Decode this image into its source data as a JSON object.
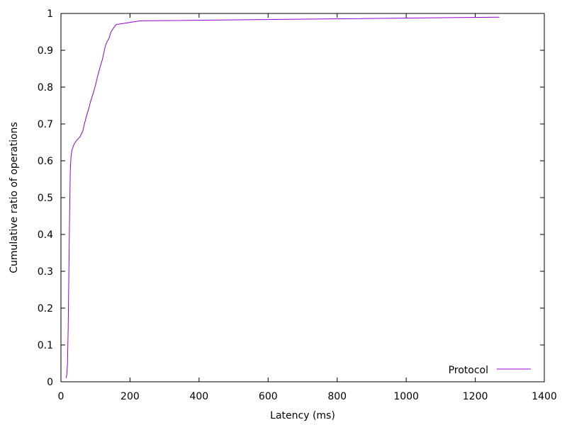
{
  "chart_data": {
    "type": "line",
    "xlabel": "Latency (ms)",
    "ylabel": "Cumulative ratio of operations",
    "xlim": [
      0,
      1400
    ],
    "ylim": [
      0,
      1
    ],
    "x_ticks": [
      "0",
      "200",
      "400",
      "600",
      "800",
      "1000",
      "1200",
      "1400"
    ],
    "y_ticks": [
      "0",
      "0.1",
      "0.2",
      "0.3",
      "0.4",
      "0.5",
      "0.6",
      "0.7",
      "0.8",
      "0.9",
      "1"
    ],
    "grid": false,
    "legend_position": "bottom-right",
    "series": [
      {
        "name": "Protocol",
        "color": "#9400d3",
        "points": [
          [
            15,
            0.01
          ],
          [
            17,
            0.02
          ],
          [
            19,
            0.05
          ],
          [
            21,
            0.15
          ],
          [
            23,
            0.3
          ],
          [
            25,
            0.45
          ],
          [
            27,
            0.57
          ],
          [
            29,
            0.61
          ],
          [
            32,
            0.63
          ],
          [
            38,
            0.645
          ],
          [
            45,
            0.655
          ],
          [
            55,
            0.665
          ],
          [
            63,
            0.68
          ],
          [
            68,
            0.7
          ],
          [
            72,
            0.715
          ],
          [
            80,
            0.74
          ],
          [
            87,
            0.765
          ],
          [
            94,
            0.785
          ],
          [
            100,
            0.805
          ],
          [
            105,
            0.825
          ],
          [
            112,
            0.85
          ],
          [
            120,
            0.875
          ],
          [
            128,
            0.91
          ],
          [
            132,
            0.92
          ],
          [
            140,
            0.935
          ],
          [
            145,
            0.95
          ],
          [
            152,
            0.96
          ],
          [
            160,
            0.97
          ],
          [
            230,
            0.98
          ],
          [
            1270,
            0.99
          ]
        ]
      }
    ]
  }
}
